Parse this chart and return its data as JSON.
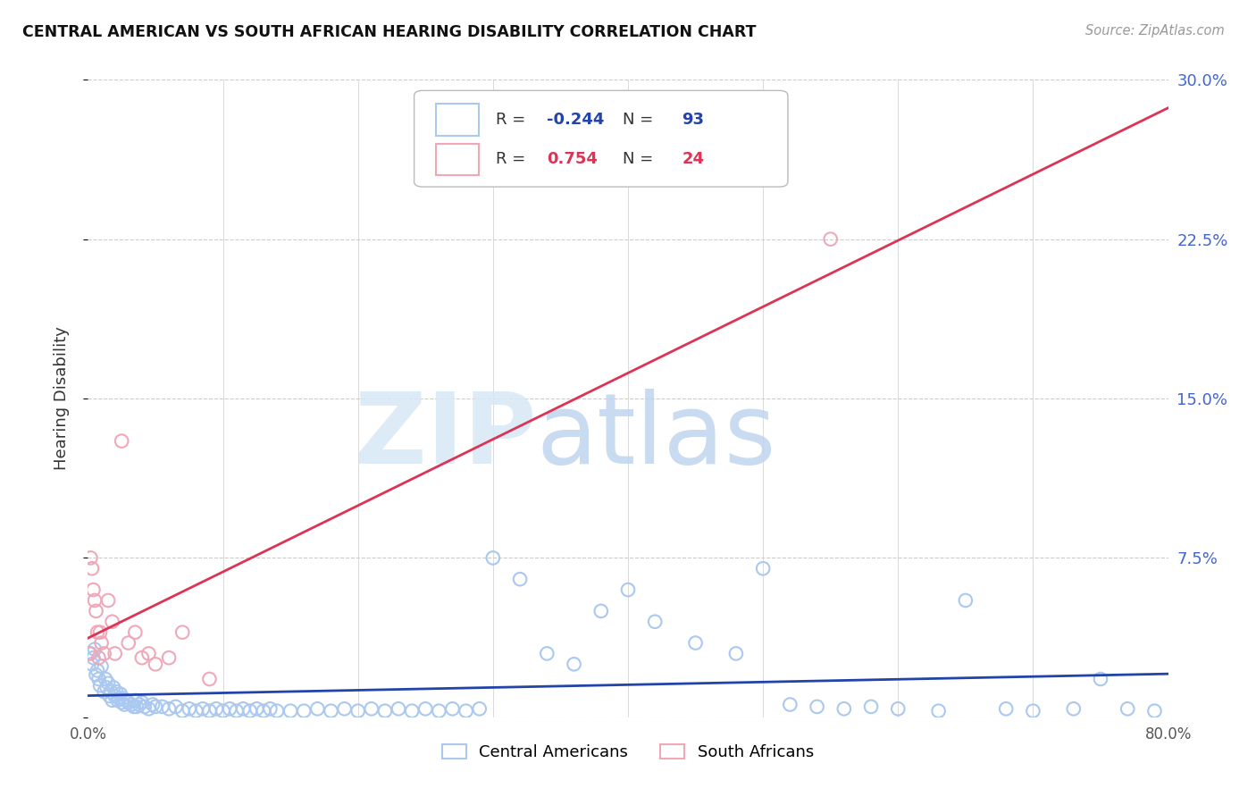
{
  "title": "CENTRAL AMERICAN VS SOUTH AFRICAN HEARING DISABILITY CORRELATION CHART",
  "source_text": "Source: ZipAtlas.com",
  "ylabel": "Hearing Disability",
  "watermark_zip": "ZIP",
  "watermark_atlas": "atlas",
  "xlim": [
    0.0,
    0.8
  ],
  "ylim": [
    0.0,
    0.3
  ],
  "yticks": [
    0.0,
    0.075,
    0.15,
    0.225,
    0.3
  ],
  "ytick_labels_right": [
    "",
    "7.5%",
    "15.0%",
    "22.5%",
    "30.0%"
  ],
  "xtick_vals": [
    0.0,
    0.1,
    0.2,
    0.3,
    0.4,
    0.5,
    0.6,
    0.7,
    0.8
  ],
  "xtick_labels": [
    "0.0%",
    "",
    "",
    "",
    "",
    "",
    "",
    "",
    "80.0%"
  ],
  "blue_scatter_color": "#aac8f0",
  "pink_scatter_color": "#f0a8b8",
  "blue_line_color": "#2244aa",
  "pink_line_color": "#dd3355",
  "title_color": "#111111",
  "tick_color_right": "#4466cc",
  "grid_color": "#cccccc",
  "background_color": "#ffffff",
  "legend_r1_val": "-0.244",
  "legend_n1_val": "93",
  "legend_r2_val": "0.754",
  "legend_n2_val": "24",
  "legend_label1": "Central Americans",
  "legend_label2": "South Africans",
  "ca_x": [
    0.002,
    0.003,
    0.004,
    0.005,
    0.006,
    0.007,
    0.008,
    0.009,
    0.01,
    0.012,
    0.013,
    0.014,
    0.015,
    0.016,
    0.017,
    0.018,
    0.019,
    0.02,
    0.021,
    0.022,
    0.023,
    0.024,
    0.025,
    0.026,
    0.027,
    0.028,
    0.03,
    0.032,
    0.034,
    0.035,
    0.036,
    0.038,
    0.04,
    0.042,
    0.045,
    0.048,
    0.05,
    0.055,
    0.06,
    0.065,
    0.07,
    0.075,
    0.08,
    0.085,
    0.09,
    0.095,
    0.1,
    0.105,
    0.11,
    0.115,
    0.12,
    0.125,
    0.13,
    0.135,
    0.14,
    0.15,
    0.16,
    0.17,
    0.18,
    0.19,
    0.2,
    0.21,
    0.22,
    0.23,
    0.24,
    0.25,
    0.26,
    0.27,
    0.28,
    0.29,
    0.3,
    0.32,
    0.34,
    0.36,
    0.38,
    0.4,
    0.42,
    0.45,
    0.48,
    0.5,
    0.52,
    0.54,
    0.56,
    0.58,
    0.6,
    0.63,
    0.65,
    0.68,
    0.7,
    0.73,
    0.75,
    0.77,
    0.79
  ],
  "ca_y": [
    0.03,
    0.025,
    0.028,
    0.032,
    0.02,
    0.022,
    0.018,
    0.015,
    0.024,
    0.012,
    0.018,
    0.014,
    0.016,
    0.01,
    0.012,
    0.008,
    0.014,
    0.01,
    0.012,
    0.008,
    0.009,
    0.011,
    0.007,
    0.009,
    0.006,
    0.008,
    0.007,
    0.006,
    0.005,
    0.008,
    0.005,
    0.006,
    0.007,
    0.005,
    0.004,
    0.006,
    0.005,
    0.005,
    0.004,
    0.005,
    0.003,
    0.004,
    0.003,
    0.004,
    0.003,
    0.004,
    0.003,
    0.004,
    0.003,
    0.004,
    0.003,
    0.004,
    0.003,
    0.004,
    0.003,
    0.003,
    0.003,
    0.004,
    0.003,
    0.004,
    0.003,
    0.004,
    0.003,
    0.004,
    0.003,
    0.004,
    0.003,
    0.004,
    0.003,
    0.004,
    0.075,
    0.065,
    0.03,
    0.025,
    0.05,
    0.06,
    0.045,
    0.035,
    0.03,
    0.07,
    0.006,
    0.005,
    0.004,
    0.005,
    0.004,
    0.003,
    0.055,
    0.004,
    0.003,
    0.004,
    0.018,
    0.004,
    0.003
  ],
  "sa_x": [
    0.001,
    0.002,
    0.003,
    0.004,
    0.005,
    0.006,
    0.007,
    0.008,
    0.009,
    0.01,
    0.012,
    0.015,
    0.018,
    0.02,
    0.025,
    0.03,
    0.035,
    0.04,
    0.045,
    0.05,
    0.06,
    0.07,
    0.09,
    0.55
  ],
  "sa_y": [
    0.03,
    0.075,
    0.07,
    0.06,
    0.055,
    0.05,
    0.04,
    0.028,
    0.04,
    0.035,
    0.03,
    0.055,
    0.045,
    0.03,
    0.13,
    0.035,
    0.04,
    0.028,
    0.03,
    0.025,
    0.028,
    0.04,
    0.018,
    0.225
  ]
}
